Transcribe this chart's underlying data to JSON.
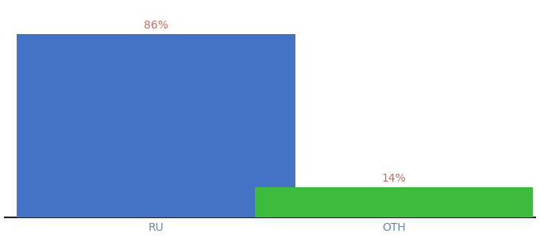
{
  "categories": [
    "RU",
    "OTH"
  ],
  "values": [
    86,
    14
  ],
  "bar_colors": [
    "#4472c4",
    "#3dbb3d"
  ],
  "label_color": "#c07060",
  "label_texts": [
    "86%",
    "14%"
  ],
  "ylim": [
    0,
    100
  ],
  "background_color": "#ffffff",
  "bar_width": 0.55,
  "label_fontsize": 10,
  "tick_fontsize": 10,
  "tick_color": "#6688aa",
  "spine_color": "#222222"
}
